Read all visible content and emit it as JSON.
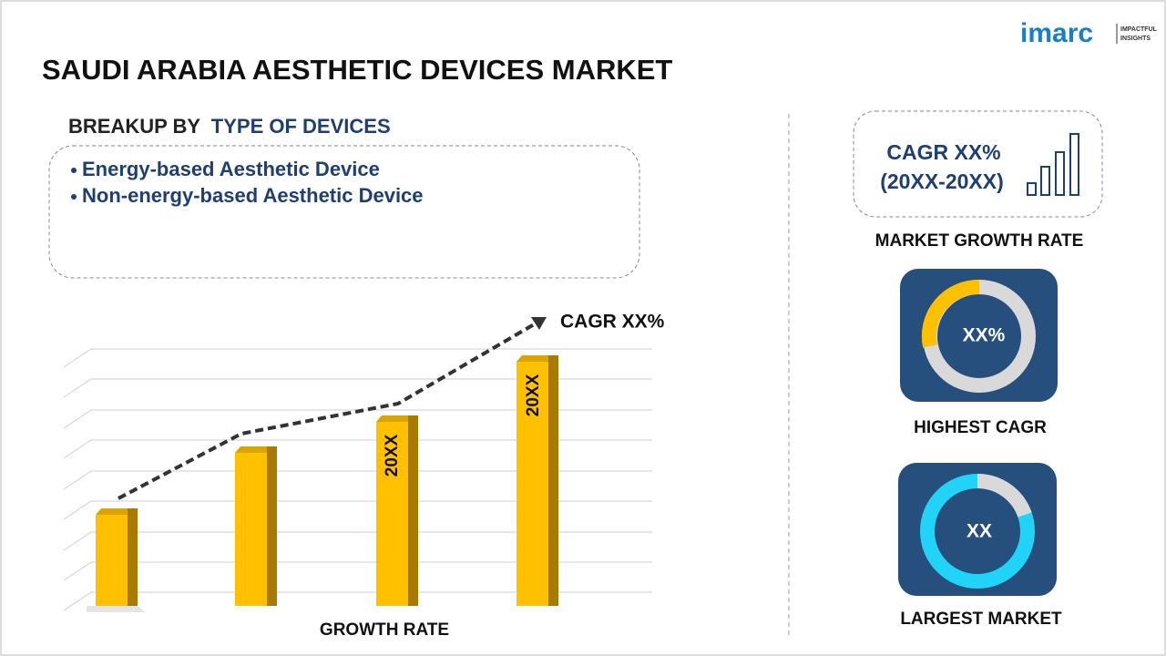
{
  "brand": {
    "name": "imarc",
    "tagline_1": "IMPACTFUL",
    "tagline_2": "INSIGHTS"
  },
  "title": "SAUDI ARABIA AESTHETIC DEVICES MARKET",
  "breakup": {
    "heading_prefix": "BREAKUP BY",
    "heading_highlight": "TYPE OF DEVICES",
    "items": [
      "Energy-based Aesthetic Device",
      "Non-energy-based Aesthetic Device"
    ]
  },
  "growth": {
    "cagr_label": "CAGR XX%",
    "bar_labels": [
      "20XX",
      "20XX"
    ],
    "axis_label": "GROWTH RATE"
  },
  "market_growth": {
    "line_1": "CAGR XX%",
    "line_2": "(20XX-20XX)",
    "label": "MARKET GROWTH RATE"
  },
  "highest_cagr": {
    "value": "XX%",
    "label": "HIGHEST CAGR"
  },
  "largest_market": {
    "value": "XX",
    "label": "LARGEST MARKET"
  }
}
